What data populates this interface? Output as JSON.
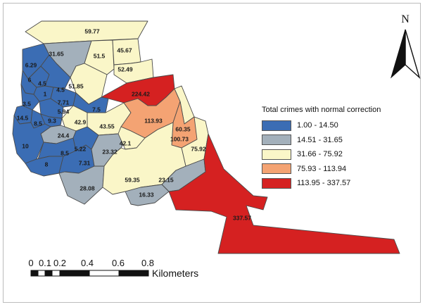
{
  "legend": {
    "title": "Total crimes with normal correction",
    "classes": [
      {
        "label": "1.00 - 14.50",
        "color": "#3b6db4"
      },
      {
        "label": "14.51 - 31.65",
        "color": "#a3b0bb"
      },
      {
        "label": "31.66 - 75.92",
        "color": "#faf6c8"
      },
      {
        "label": "75.93 - 113.94",
        "color": "#f4a373"
      },
      {
        "label": "113.95 - 337.57",
        "color": "#d52121"
      }
    ]
  },
  "north_arrow": {
    "label": "N"
  },
  "scale_bar": {
    "ticks": [
      "0",
      "0.1",
      "0.2",
      "0.4",
      "0.6",
      "0.8"
    ],
    "unit": "Kilometers"
  },
  "zones": [
    {
      "id": "z1",
      "value": "59.77",
      "class": 2
    },
    {
      "id": "z2",
      "value": "31.65",
      "class": 1
    },
    {
      "id": "z3",
      "value": "51.5",
      "class": 2
    },
    {
      "id": "z4",
      "value": "45.67",
      "class": 2
    },
    {
      "id": "z5",
      "value": "52.49",
      "class": 2
    },
    {
      "id": "z6",
      "value": "6.29",
      "class": 0
    },
    {
      "id": "z7",
      "value": "6",
      "class": 0
    },
    {
      "id": "z8",
      "value": "4.5",
      "class": 0
    },
    {
      "id": "z9",
      "value": "4.5",
      "class": 0
    },
    {
      "id": "z10",
      "value": "1",
      "class": 0
    },
    {
      "id": "z11",
      "value": "3.5",
      "class": 0
    },
    {
      "id": "z12",
      "value": "7.71",
      "class": 0
    },
    {
      "id": "z13",
      "value": "5.94",
      "class": 0
    },
    {
      "id": "z14",
      "value": "14.5",
      "class": 0
    },
    {
      "id": "z15",
      "value": "8.5",
      "class": 0
    },
    {
      "id": "z16",
      "value": "9.3",
      "class": 0
    },
    {
      "id": "z17",
      "value": "51.85",
      "class": 2
    },
    {
      "id": "z18",
      "value": "224.42",
      "class": 4
    },
    {
      "id": "z19",
      "value": "7.5",
      "class": 0
    },
    {
      "id": "z20",
      "value": "42.9",
      "class": 2
    },
    {
      "id": "z21",
      "value": "43.55",
      "class": 2
    },
    {
      "id": "z22",
      "value": "113.93",
      "class": 3
    },
    {
      "id": "z23",
      "value": "60.35",
      "class": 2
    },
    {
      "id": "z24",
      "value": "100.73",
      "class": 3
    },
    {
      "id": "z25",
      "value": "24.4",
      "class": 1
    },
    {
      "id": "z26",
      "value": "10",
      "class": 0
    },
    {
      "id": "z27",
      "value": "8.5",
      "class": 0
    },
    {
      "id": "z28",
      "value": "5.22",
      "class": 0
    },
    {
      "id": "z29",
      "value": "8",
      "class": 0
    },
    {
      "id": "z30",
      "value": "7.31",
      "class": 0
    },
    {
      "id": "z31",
      "value": "23.32",
      "class": 1
    },
    {
      "id": "z32",
      "value": "42.1",
      "class": 2
    },
    {
      "id": "z33",
      "value": "75.92",
      "class": 2
    },
    {
      "id": "z34",
      "value": "28.08",
      "class": 1
    },
    {
      "id": "z35",
      "value": "59.35",
      "class": 2
    },
    {
      "id": "z36",
      "value": "23.15",
      "class": 1
    },
    {
      "id": "z37",
      "value": "16.33",
      "class": 1
    },
    {
      "id": "z38",
      "value": "337.57",
      "class": 4
    }
  ]
}
